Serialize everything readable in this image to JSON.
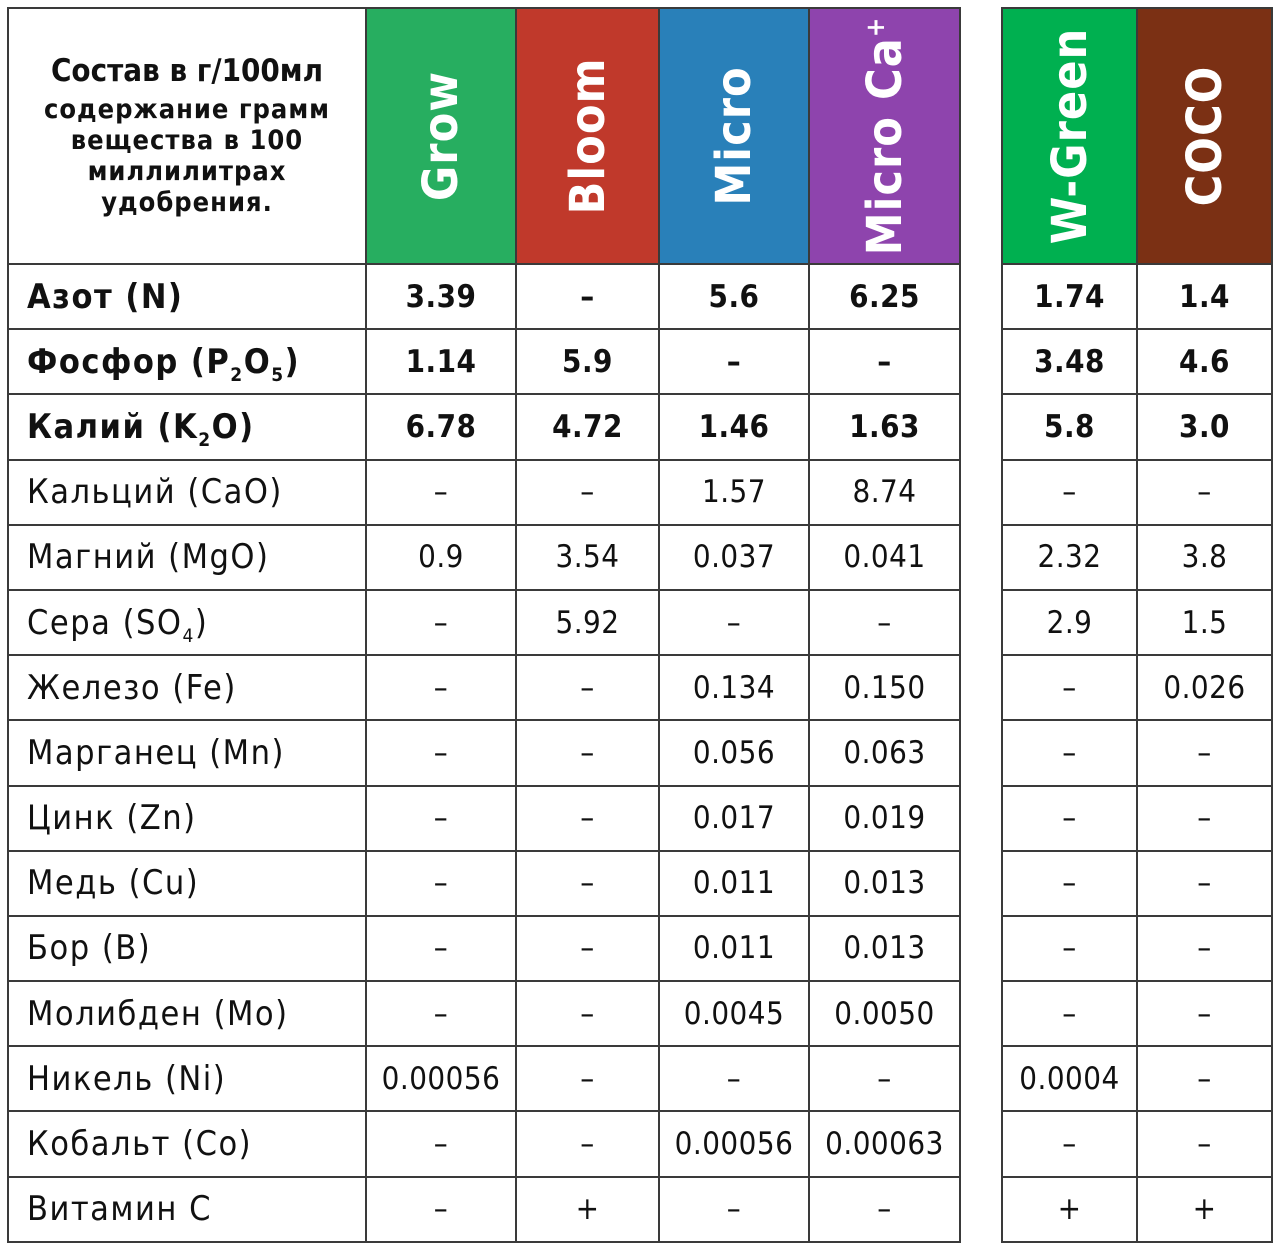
{
  "title": "Состав в г/100мл",
  "subtitle": "содержание грамм вещества в 100 миллилитрах удобрения.",
  "products_main": [
    {
      "name": "Grow",
      "sup": "",
      "color": "#27ae60"
    },
    {
      "name": "Bloom",
      "sup": "",
      "color": "#c0392b"
    },
    {
      "name": "Micro",
      "sup": "",
      "color": "#2980b9"
    },
    {
      "name": "Micro Ca",
      "sup": "+",
      "color": "#8e44ad"
    }
  ],
  "products_side": [
    {
      "name": "W-Green",
      "sup": "",
      "color": "#00b050"
    },
    {
      "name": "COCO",
      "sup": "",
      "color": "#7b3014"
    }
  ],
  "rows": [
    {
      "name": "Азот (N)",
      "main": [
        "3.39",
        "–",
        "5.6",
        "6.25"
      ],
      "side": [
        "1.74",
        "1.4"
      ],
      "bold": true
    },
    {
      "name": "Фосфор (P",
      "sub1": "2",
      "mid": "O",
      "sub2": "5",
      "tail": ")",
      "main": [
        "1.14",
        "5.9",
        "–",
        "–"
      ],
      "side": [
        "3.48",
        "4.6"
      ],
      "bold": true
    },
    {
      "name": "Калий (K",
      "sub1": "2",
      "mid": "O)",
      "main": [
        "6.78",
        "4.72",
        "1.46",
        "1.63"
      ],
      "side": [
        "5.8",
        "3.0"
      ],
      "bold": true
    },
    {
      "name": "Кальций (CaO)",
      "main": [
        "–",
        "–",
        "1.57",
        "8.74"
      ],
      "side": [
        "–",
        "–"
      ],
      "bold": false
    },
    {
      "name": "Магний (MgO)",
      "main": [
        "0.9",
        "3.54",
        "0.037",
        "0.041"
      ],
      "side": [
        "2.32",
        "3.8"
      ],
      "bold": false
    },
    {
      "name": "Сера (SO",
      "sub1": "4",
      "mid": ")",
      "main": [
        "–",
        "5.92",
        "–",
        "–"
      ],
      "side": [
        "2.9",
        "1.5"
      ],
      "bold": false
    },
    {
      "name": "Железо (Fe)",
      "main": [
        "–",
        "–",
        "0.134",
        "0.150"
      ],
      "side": [
        "–",
        "0.026"
      ],
      "bold": false
    },
    {
      "name": "Марганец (Mn)",
      "main": [
        "–",
        "–",
        "0.056",
        "0.063"
      ],
      "side": [
        "–",
        "–"
      ],
      "bold": false
    },
    {
      "name": "Цинк (Zn)",
      "main": [
        "–",
        "–",
        "0.017",
        "0.019"
      ],
      "side": [
        "–",
        "–"
      ],
      "bold": false
    },
    {
      "name": "Медь (Cu)",
      "main": [
        "–",
        "–",
        "0.011",
        "0.013"
      ],
      "side": [
        "–",
        "–"
      ],
      "bold": false
    },
    {
      "name": "Бор (B)",
      "main": [
        "–",
        "–",
        "0.011",
        "0.013"
      ],
      "side": [
        "–",
        "–"
      ],
      "bold": false
    },
    {
      "name": "Молибден (Mo)",
      "main": [
        "–",
        "–",
        "0.0045",
        "0.0050"
      ],
      "side": [
        "–",
        "–"
      ],
      "bold": false
    },
    {
      "name": "Никель (Ni)",
      "main": [
        "0.00056",
        "–",
        "–",
        "–"
      ],
      "side": [
        "0.0004",
        "–"
      ],
      "bold": false
    },
    {
      "name": "Кобальт (Co)",
      "main": [
        "–",
        "–",
        "0.00056",
        "0.00063"
      ],
      "side": [
        "–",
        "–"
      ],
      "bold": false
    },
    {
      "name": "Витамин C",
      "main": [
        "–",
        "+",
        "–",
        "–"
      ],
      "side": [
        "+",
        "+"
      ],
      "bold": false
    }
  ]
}
